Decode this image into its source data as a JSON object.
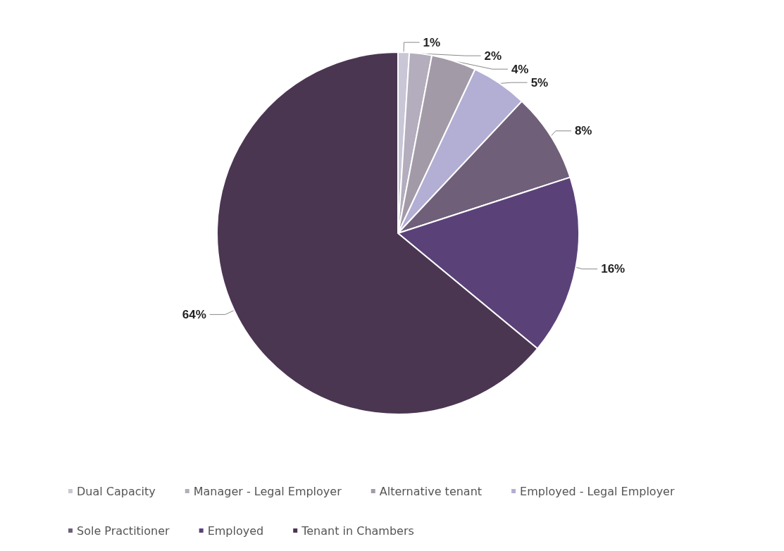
{
  "chart_data": {
    "type": "pie",
    "categories": [
      "Dual Capacity",
      "Manager - Legal Employer",
      "Alternative tenant",
      "Employed - Legal Employer",
      "Sole Practitioner",
      "Employed",
      "Tenant in Chambers"
    ],
    "values": [
      1,
      2,
      4,
      5,
      8,
      16,
      64
    ],
    "value_labels": [
      "1%",
      "2%",
      "4%",
      "5%",
      "8%",
      "16%",
      "64%"
    ],
    "colors": [
      "#c9c6d6",
      "#b3adbd",
      "#a39aa8",
      "#b2aed4",
      "#6f5f78",
      "#5a4279",
      "#4b3652"
    ],
    "legend": "bottom"
  }
}
